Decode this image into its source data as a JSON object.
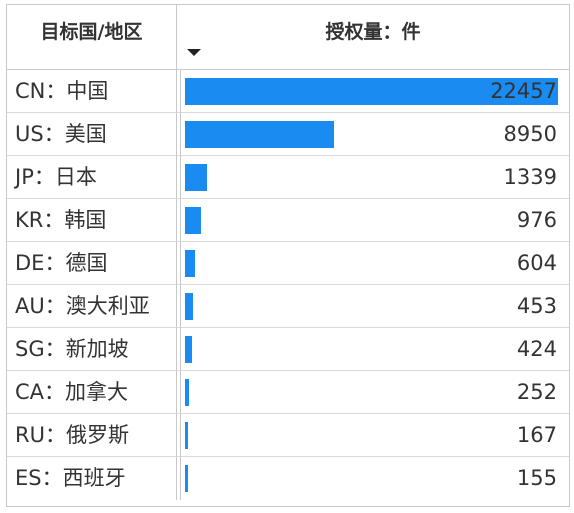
{
  "header": {
    "country_label": "目标国/地区",
    "value_label": "授权量：件",
    "sort_icon": "sort-descending-icon"
  },
  "bar_color": "#1a8bf0",
  "max_value": 22457,
  "rows": [
    {
      "country": "CN：中国",
      "value": 22457
    },
    {
      "country": "US：美国",
      "value": 8950
    },
    {
      "country": "JP：日本",
      "value": 1339
    },
    {
      "country": "KR：韩国",
      "value": 976
    },
    {
      "country": "DE：德国",
      "value": 604
    },
    {
      "country": "AU：澳大利亚",
      "value": 453
    },
    {
      "country": "SG：新加坡",
      "value": 424
    },
    {
      "country": "CA：加拿大",
      "value": 252
    },
    {
      "country": "RU：俄罗斯",
      "value": 167
    },
    {
      "country": "ES：西班牙",
      "value": 155
    }
  ]
}
